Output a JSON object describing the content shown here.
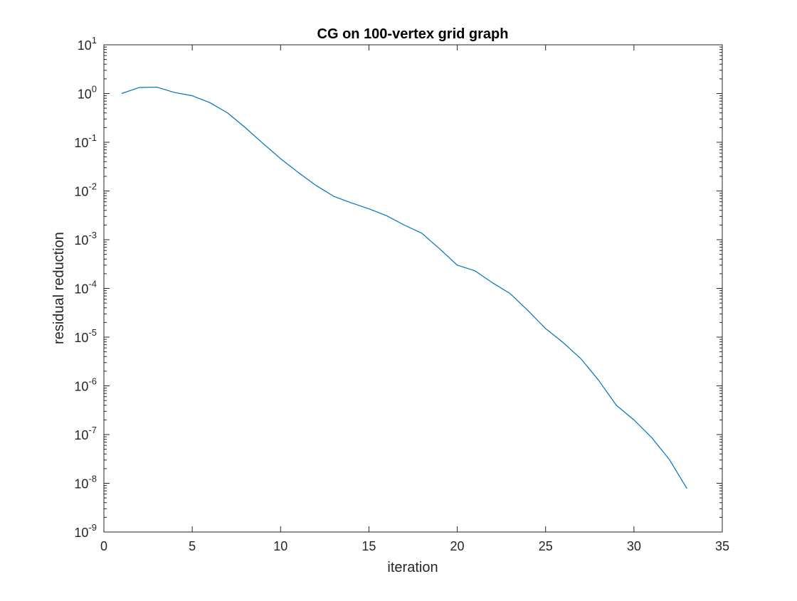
{
  "chart_data": {
    "type": "line",
    "title": "CG on 100-vertex grid graph",
    "xlabel": "iteration",
    "ylabel": "residual reduction",
    "xlim": [
      0,
      35
    ],
    "ylim": [
      1e-09,
      10
    ],
    "yscale": "log",
    "grid": false,
    "legend": "none",
    "x_ticks": [
      0,
      5,
      10,
      15,
      20,
      25,
      30,
      35
    ],
    "x_tick_labels": [
      "0",
      "5",
      "10",
      "15",
      "20",
      "25",
      "30",
      "35"
    ],
    "y_ticks": [
      {
        "value": 10,
        "base": "10",
        "exp": "1"
      },
      {
        "value": 1,
        "base": "10",
        "exp": "0"
      },
      {
        "value": 0.1,
        "base": "10",
        "exp": "-1"
      },
      {
        "value": 0.01,
        "base": "10",
        "exp": "-2"
      },
      {
        "value": 0.001,
        "base": "10",
        "exp": "-3"
      },
      {
        "value": 0.0001,
        "base": "10",
        "exp": "-4"
      },
      {
        "value": 1e-05,
        "base": "10",
        "exp": "-5"
      },
      {
        "value": 1e-06,
        "base": "10",
        "exp": "-6"
      },
      {
        "value": 1e-07,
        "base": "10",
        "exp": "-7"
      },
      {
        "value": 1e-08,
        "base": "10",
        "exp": "-8"
      },
      {
        "value": 1e-09,
        "base": "10",
        "exp": "-9"
      }
    ],
    "series": [
      {
        "color": "#0072BD",
        "x": [
          1,
          2,
          3,
          4,
          5,
          6,
          7,
          8,
          9,
          10,
          11,
          12,
          13,
          14,
          15,
          16,
          17,
          18,
          19,
          20,
          21,
          22,
          23,
          24,
          25,
          26,
          27,
          28,
          29,
          30,
          31,
          32,
          33
        ],
        "y": [
          1.0,
          1.33,
          1.35,
          1.05,
          0.9,
          0.65,
          0.4,
          0.2,
          0.095,
          0.046,
          0.024,
          0.013,
          0.0078,
          0.0057,
          0.0043,
          0.0031,
          0.002,
          0.00135,
          0.00065,
          0.0003,
          0.00023,
          0.00013,
          7.8e-05,
          3.5e-05,
          1.5e-05,
          7.7e-06,
          3.6e-06,
          1.3e-06,
          4e-07,
          2e-07,
          8.7e-08,
          3.1e-08,
          7.8e-09
        ]
      }
    ]
  }
}
